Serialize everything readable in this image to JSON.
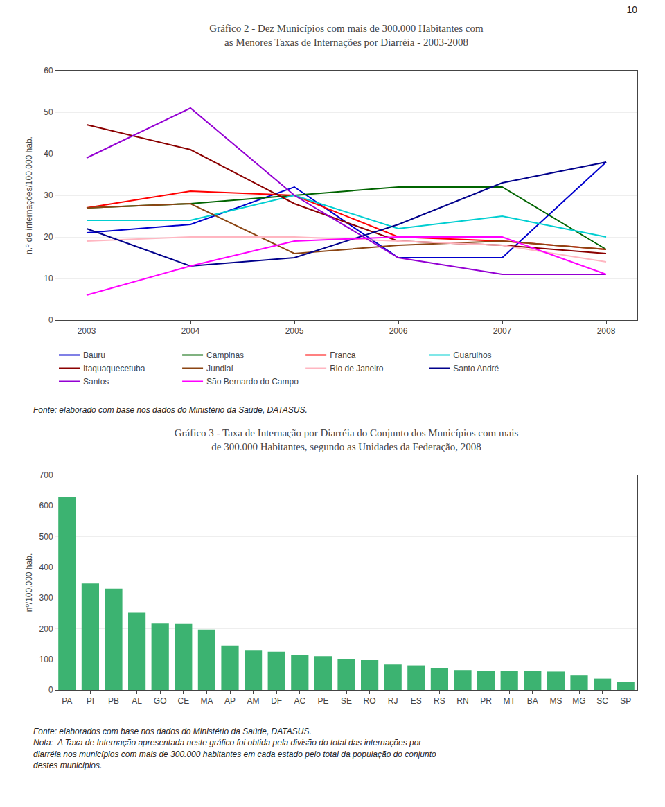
{
  "annotations": [
    "10"
  ],
  "chart_data": [
    {
      "type": "line",
      "title": "Gráfico 2 - Dez Municípios com mais de 300.000 Habitantes com\nas Menores Taxas de Internações por Diarréia - 2003-2008",
      "ylabel": "n.º de internações/100.000 hab.",
      "x": [
        2003,
        2004,
        2005,
        2006,
        2007,
        2008
      ],
      "xlim": [
        2002.7,
        2008.3
      ],
      "xticks": [
        2003,
        2004,
        2005,
        2006,
        2007,
        2008
      ],
      "ylim": [
        0,
        60
      ],
      "yticks": [
        0,
        10,
        20,
        30,
        40,
        50,
        60
      ],
      "grid": true,
      "legend": "bottom",
      "series": [
        {
          "name": "Bauru",
          "color": "#0000cd",
          "values": [
            21,
            23,
            32,
            15,
            15,
            38
          ]
        },
        {
          "name": "Campinas",
          "color": "#006400",
          "values": [
            27,
            28,
            30,
            32,
            32,
            17
          ]
        },
        {
          "name": "Franca",
          "color": "#ff0000",
          "values": [
            27,
            31,
            30,
            20,
            19,
            17
          ]
        },
        {
          "name": "Guarulhos",
          "color": "#00ced1",
          "values": [
            24,
            24,
            30,
            22,
            25,
            20
          ]
        },
        {
          "name": "Itaquaquecetuba",
          "color": "#8b0000",
          "values": [
            47,
            41,
            28,
            19,
            18,
            16
          ]
        },
        {
          "name": "Jundiaí",
          "color": "#8b4513",
          "values": [
            27,
            28,
            16,
            18,
            19,
            17
          ]
        },
        {
          "name": "Rio de Janeiro",
          "color": "#ffb6c1",
          "values": [
            19,
            20,
            20,
            19,
            18,
            14
          ]
        },
        {
          "name": "Santo André",
          "color": "#00008b",
          "values": [
            22,
            13,
            15,
            23,
            33,
            38
          ]
        },
        {
          "name": "Santos",
          "color": "#9400d3",
          "values": [
            39,
            51,
            30,
            15,
            11,
            11
          ]
        },
        {
          "name": "São Bernardo do Campo",
          "color": "#ff00ff",
          "values": [
            6,
            13,
            19,
            20,
            20,
            11
          ]
        }
      ],
      "annotations": [
        "Fonte: elaborado com base nos dados do Ministério da Saúde, DATASUS."
      ]
    },
    {
      "type": "bar",
      "title": "Gráfico 3 - Taxa de Internação por Diarréia do Conjunto dos Municípios com mais\nde 300.000 Habitantes, segundo as Unidades da Federação, 2008",
      "ylabel": "nº/100.000 hab.",
      "categories": [
        "PA",
        "PI",
        "PB",
        "AL",
        "GO",
        "CE",
        "MA",
        "AP",
        "AM",
        "DF",
        "AC",
        "PE",
        "SE",
        "RO",
        "RJ",
        "ES",
        "RS",
        "RN",
        "PR",
        "MT",
        "BA",
        "MS",
        "MG",
        "SC",
        "SP"
      ],
      "values": [
        630,
        347,
        330,
        252,
        216,
        215,
        197,
        145,
        128,
        125,
        113,
        110,
        100,
        97,
        83,
        80,
        70,
        65,
        63,
        62,
        61,
        60,
        47,
        37,
        25
      ],
      "color": "#3cb371",
      "ylim": [
        0,
        700
      ],
      "yticks": [
        0,
        100,
        200,
        300,
        400,
        500,
        600,
        700
      ],
      "grid": true,
      "annotations": [
        "Fonte: elaborados com base nos dados do Ministério da Saúde, DATASUS.",
        "Nota:  A Taxa de Internação apresentada neste gráfico foi obtida pela divisão do total das internações por\ndiarréia nos municípios com mais de 300.000 habitantes em cada estado pelo total da população do conjunto\ndestes municípios."
      ]
    }
  ]
}
